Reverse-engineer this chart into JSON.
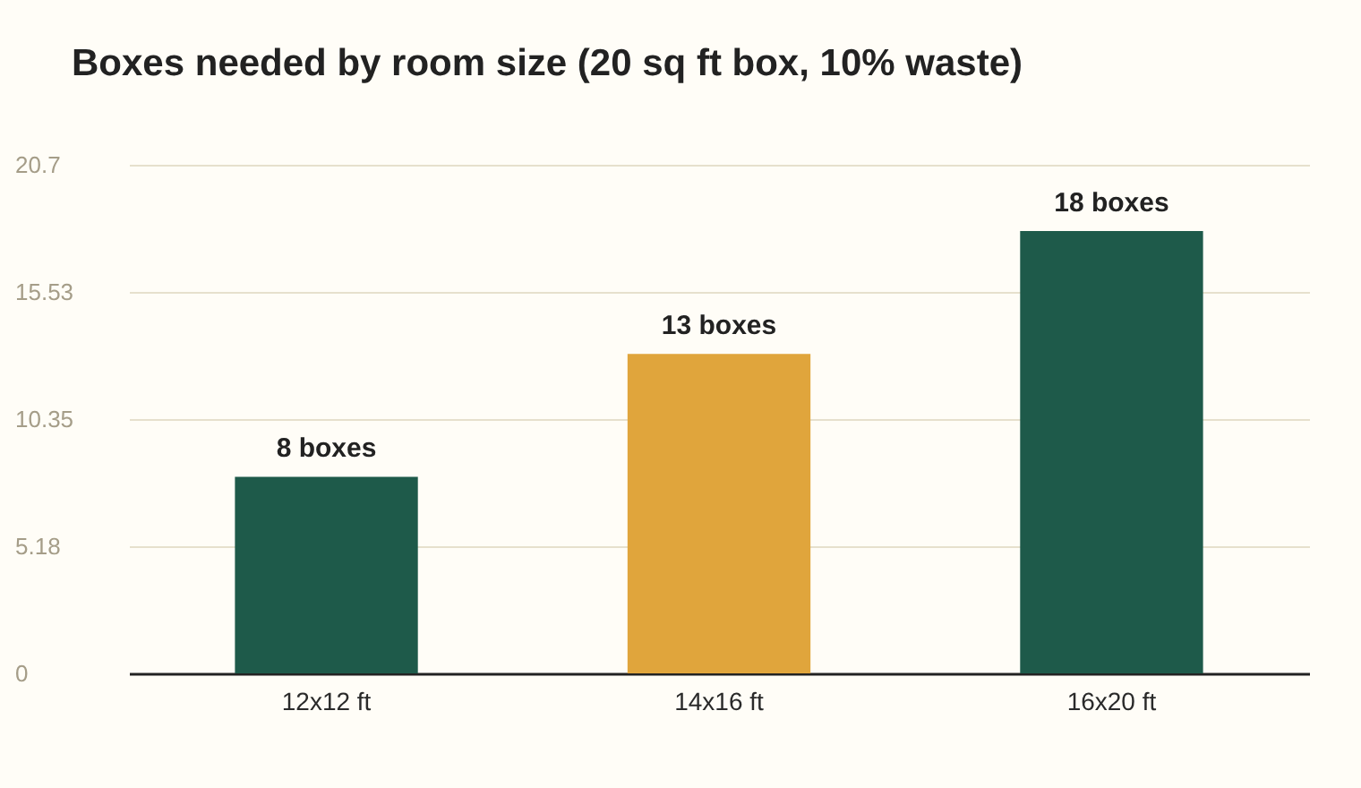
{
  "chart_data": {
    "type": "bar",
    "title": "Boxes needed by room size (20 sq ft box, 10% waste)",
    "categories": [
      "12x12 ft",
      "14x16 ft",
      "16x20 ft"
    ],
    "values": [
      8,
      13,
      18
    ],
    "colors": [
      "#1e5a4a",
      "#e0a53c",
      "#1e5a4a"
    ],
    "value_labels": [
      "8 boxes",
      "13 boxes",
      "18 boxes"
    ],
    "ylim": [
      0,
      20.7
    ],
    "yticks": [
      0,
      5.18,
      10.35,
      15.53,
      20.7
    ],
    "grid": "y"
  }
}
